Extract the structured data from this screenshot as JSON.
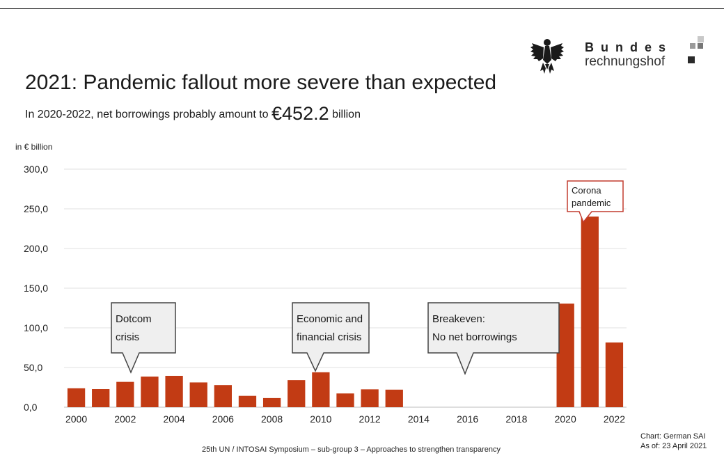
{
  "header": {
    "title": "2021: Pandemic fallout more severe than expected",
    "subtitle_prefix": "In 2020-2022, net borrowings probably amount to",
    "subtitle_value": "€452.2",
    "subtitle_suffix": "billion"
  },
  "logo": {
    "word1": "Bundes",
    "word2": "rechnungshof",
    "icon": "eagle-icon"
  },
  "chart_data": {
    "type": "bar",
    "ylabel": "in € billion",
    "ylim": [
      0,
      300
    ],
    "y_ticks": [
      "0,0",
      "50,0",
      "100,0",
      "150,0",
      "200,0",
      "250,0",
      "300,0"
    ],
    "y_tick_values": [
      0,
      50,
      100,
      150,
      200,
      250,
      300
    ],
    "x_tick_labels": [
      "2000",
      "2002",
      "2004",
      "2006",
      "2008",
      "2010",
      "2012",
      "2014",
      "2016",
      "2018",
      "2020",
      "2022"
    ],
    "categories": [
      "2000",
      "2001",
      "2002",
      "2003",
      "2004",
      "2005",
      "2006",
      "2007",
      "2008",
      "2009",
      "2010",
      "2011",
      "2012",
      "2013",
      "2014",
      "2015",
      "2016",
      "2017",
      "2018",
      "2019",
      "2020",
      "2021",
      "2022"
    ],
    "values": [
      23.8,
      22.8,
      31.9,
      38.6,
      39.5,
      31.2,
      27.9,
      14.3,
      11.5,
      34.1,
      44.0,
      17.3,
      22.5,
      22.1,
      0,
      0,
      0,
      0,
      0,
      0,
      130.5,
      240.2,
      81.5
    ],
    "bar_color": "#c23b14",
    "grid": true,
    "annotations": [
      {
        "lines": [
          "Dotcom",
          "crisis"
        ],
        "year": "2002",
        "style": "callout"
      },
      {
        "lines": [
          "Economic and",
          "financial crisis"
        ],
        "year": "2010",
        "style": "callout"
      },
      {
        "lines": [
          "Breakeven:",
          "No net borrowings"
        ],
        "year": "2016",
        "style": "callout"
      },
      {
        "lines": [
          "Corona",
          "pandemic"
        ],
        "year": "2021",
        "style": "highlight"
      }
    ]
  },
  "footer": {
    "text": "25th UN / INTOSAI Symposium – sub-group 3 – Approaches to strengthen transparency",
    "source_line1": "Chart: German SAI",
    "source_line2": "As of: 23 April 2021"
  }
}
